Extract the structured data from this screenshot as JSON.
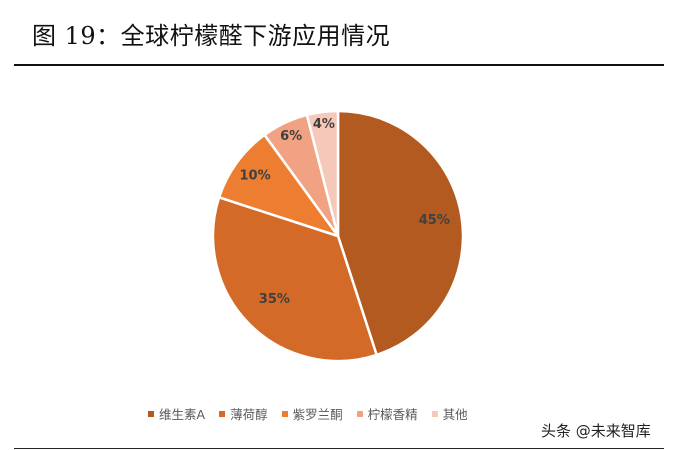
{
  "figure": {
    "title": "图 19：全球柠檬醛下游应用情况"
  },
  "watermark": "头条 @未来智库",
  "chart_data": {
    "type": "pie",
    "title": "全球柠檬醛下游应用情况",
    "categories": [
      "维生素A",
      "薄荷醇",
      "紫罗兰酮",
      "柠檬香精",
      "其他"
    ],
    "values": [
      45,
      35,
      10,
      6,
      4
    ],
    "labels": [
      "45%",
      "35%",
      "10%",
      "6%",
      "4%"
    ],
    "colors": [
      "#B35A20",
      "#D46A28",
      "#ED7D31",
      "#F0A283",
      "#F6C8B9"
    ],
    "start_angle": "12 o'clock",
    "direction": "clockwise",
    "legend_position": "bottom"
  },
  "legend": {
    "items": [
      {
        "label": "维生素A",
        "color": "#B35A20"
      },
      {
        "label": "薄荷醇",
        "color": "#D46A28"
      },
      {
        "label": "紫罗兰酮",
        "color": "#ED7D31"
      },
      {
        "label": "柠檬香精",
        "color": "#F0A283"
      },
      {
        "label": "其他",
        "color": "#F6C8B9"
      }
    ]
  }
}
